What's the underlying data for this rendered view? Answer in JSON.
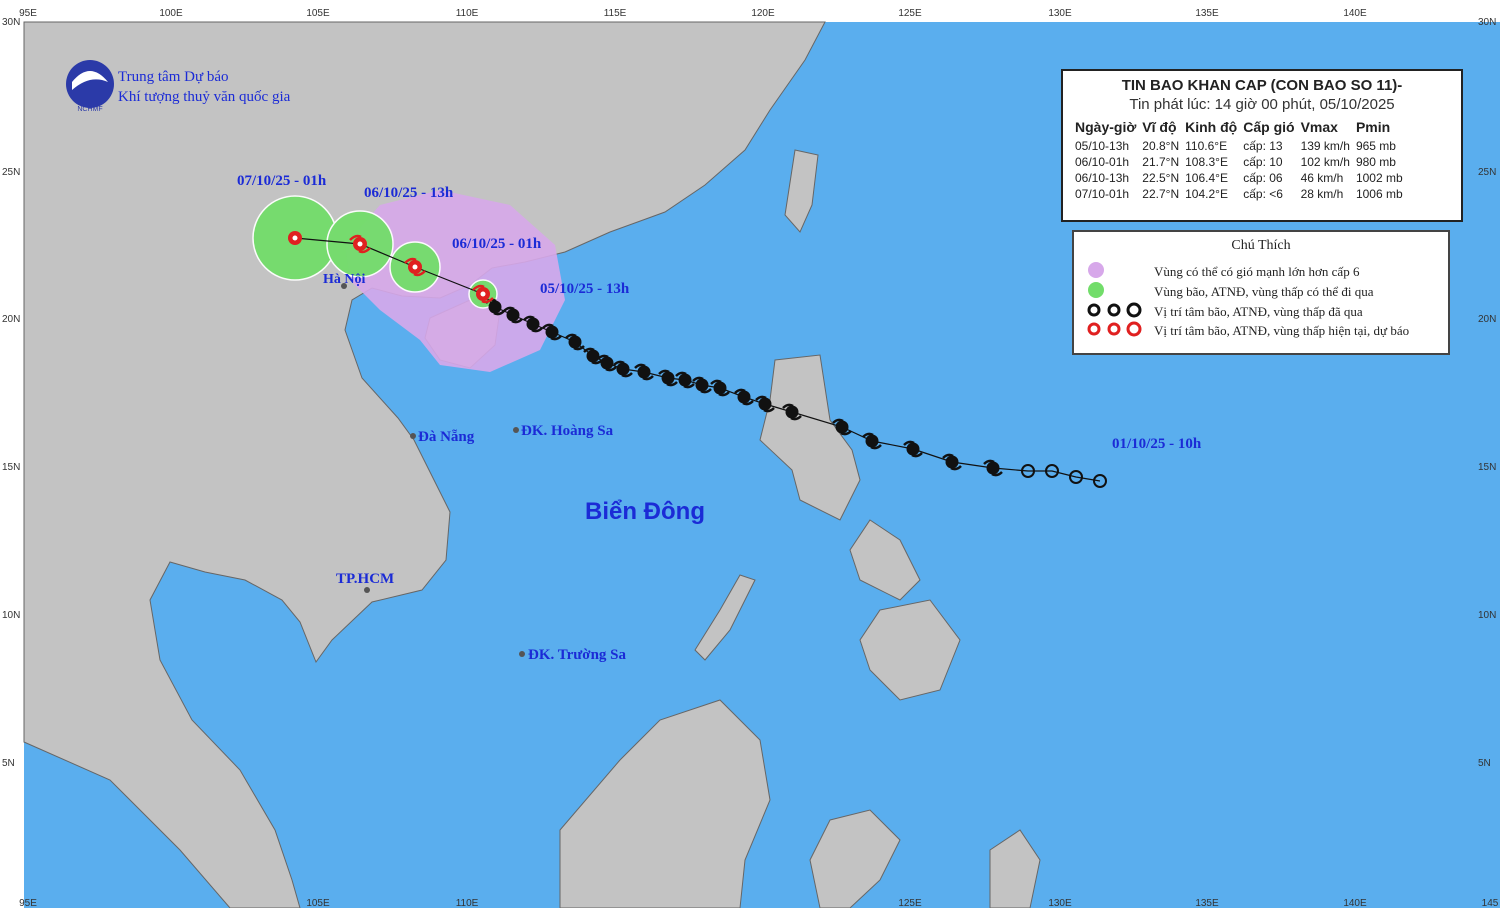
{
  "agency": {
    "line1": "Trung tâm Dự báo",
    "line2": "Khí tượng thuỷ văn quốc gia",
    "logo": "NCHMF"
  },
  "bulletin": {
    "title": "TIN BAO KHAN CAP (CON BAO SO 11)-",
    "issued": "Tin phát lúc: 14 giờ 00 phút, 05/10/2025",
    "columns": [
      "Ngày-giờ",
      "Vĩ độ",
      "Kinh độ",
      "Cấp gió",
      "Vmax",
      "Pmin"
    ],
    "rows": [
      [
        "05/10-13h",
        "20.8°N",
        "110.6°E",
        "cấp: 13",
        "139 km/h",
        "965 mb"
      ],
      [
        "06/10-01h",
        "21.7°N",
        "108.3°E",
        "cấp: 10",
        "102 km/h",
        "980 mb"
      ],
      [
        "06/10-13h",
        "22.5°N",
        "106.4°E",
        "cấp: 06",
        "46 km/h",
        "1002 mb"
      ],
      [
        "07/10-01h",
        "22.7°N",
        "104.2°E",
        "cấp: <6",
        "28 km/h",
        "1006 mb"
      ]
    ]
  },
  "legend": {
    "title": "Chú Thích",
    "items": [
      "Vùng có thể có gió mạnh lớn hơn cấp 6",
      "Vùng bão, ATNĐ, vùng thấp có thể đi qua",
      "Vị trí tâm bão, ATNĐ, vùng thấp đã qua",
      "Vị trí tâm bão, ATNĐ, vùng thấp hiện tại, dự báo"
    ]
  },
  "track_labels": [
    "07/10/25 - 01h",
    "06/10/25 - 13h",
    "06/10/25 - 01h",
    "05/10/25 - 13h",
    "01/10/25 - 10h"
  ],
  "places": [
    "Hà Nội",
    "Đà Nẵng",
    "ĐK. Hoàng Sa",
    "TP.HCM",
    "ĐK. Trường Sa"
  ],
  "sea_label": "Biển Đông",
  "grid": {
    "top": [
      "95E",
      "100E",
      "105E",
      "110E",
      "115E",
      "120E",
      "125E",
      "130E",
      "135E",
      "140E"
    ],
    "bottom": [
      "95E",
      "105E",
      "110E",
      "125E",
      "130E",
      "135E",
      "140E",
      "145"
    ],
    "left": [
      "30N",
      "25N",
      "20N",
      "15N",
      "10N",
      "5N"
    ],
    "right": [
      "30N",
      "25N",
      "20N",
      "15N",
      "10N",
      "5N"
    ]
  }
}
